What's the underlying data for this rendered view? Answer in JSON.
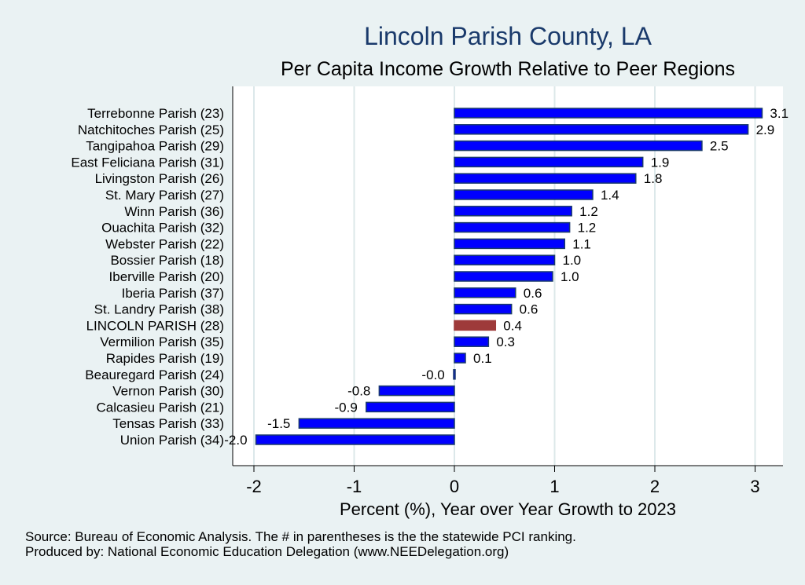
{
  "chart_data": {
    "type": "bar",
    "orientation": "horizontal",
    "title": "Lincoln Parish County, LA",
    "subtitle": "Per Capita Income Growth Relative to Peer Regions",
    "xlabel": "Percent (%), Year over Year Growth to 2023",
    "xlim": [
      -2.2,
      3.3
    ],
    "xticks": [
      "-2",
      "-1",
      "0",
      "1",
      "2",
      "3"
    ],
    "grid": true,
    "categories": [
      "Terrebonne Parish (23)",
      "Natchitoches Parish (25)",
      "Tangipahoa Parish (29)",
      "East Feliciana Parish (31)",
      "Livingston Parish (26)",
      "St. Mary Parish (27)",
      "Winn Parish (36)",
      "Ouachita Parish (32)",
      "Webster Parish (22)",
      "Bossier Parish (18)",
      "Iberville Parish (20)",
      "Iberia Parish (37)",
      "St. Landry Parish (38)",
      "LINCOLN PARISH (28)",
      "Vermilion Parish (35)",
      "Rapides Parish (19)",
      "Beauregard Parish (24)",
      "Vernon Parish (30)",
      "Calcasieu Parish (21)",
      "Tensas Parish (33)",
      "Union Parish (34)"
    ],
    "values": [
      3.07,
      2.93,
      2.47,
      1.88,
      1.81,
      1.38,
      1.17,
      1.15,
      1.1,
      1.0,
      0.98,
      0.61,
      0.57,
      0.41,
      0.34,
      0.11,
      -0.01,
      -0.75,
      -0.88,
      -1.55,
      -1.98
    ],
    "value_labels": [
      "3.1",
      "2.9",
      "2.5",
      "1.9",
      "1.8",
      "1.4",
      "1.2",
      "1.2",
      "1.1",
      "1.0",
      "1.0",
      "0.6",
      "0.6",
      "0.4",
      "0.3",
      "0.1",
      "-0.0",
      "-0.8",
      "-0.9",
      "-1.5",
      "-2.0"
    ],
    "highlight": "LINCOLN PARISH (28)",
    "colors": {
      "bar": "#0000ff",
      "bar_edge": "#1a3a6b",
      "highlight": "#9e3a3a",
      "grid": "#dce8ea",
      "background": "#eaf2f3",
      "plot_background": "#ffffff"
    }
  },
  "source_lines": [
    "Source: Bureau of Economic Analysis. The # in parentheses is the the statewide PCI ranking.",
    "Produced by: National Economic Education Delegation (www.NEEDelegation.org)"
  ]
}
